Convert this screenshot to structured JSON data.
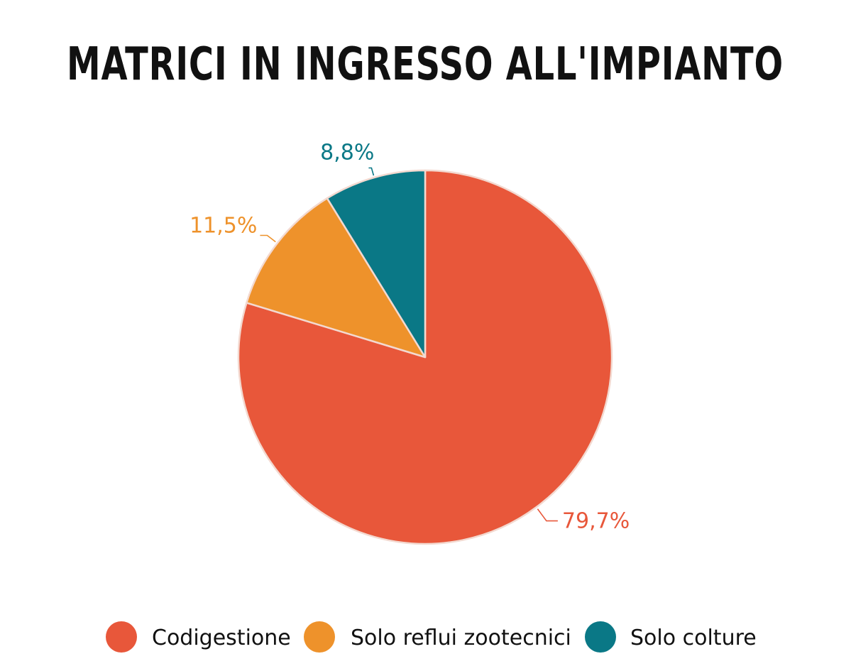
{
  "chart_data": {
    "type": "pie",
    "title": "Matrici in ingresso all'impianto",
    "slices": [
      {
        "label": "Codigestione",
        "value": 79.7,
        "display": "79,7%",
        "color": "#E8573A"
      },
      {
        "label": "Solo reflui zootecnici",
        "value": 11.5,
        "display": "11,5%",
        "color": "#EE922B"
      },
      {
        "label": "Solo colture",
        "value": 8.8,
        "display": "8,8%",
        "color": "#0A7886"
      }
    ],
    "legend_position": "bottom"
  }
}
